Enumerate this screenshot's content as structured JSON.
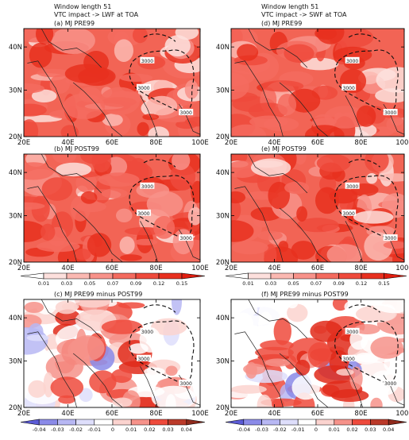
{
  "header": {
    "left": [
      "Window length 51",
      "VTC impact -> LWF at TOA"
    ],
    "right": [
      "Window length 51",
      "VTC impact -> SWF at TOA"
    ]
  },
  "panels": [
    {
      "id": "a",
      "title": "(a) MJ PRE99",
      "kind": "full"
    },
    {
      "id": "b",
      "title": "(b) MJ POST99",
      "kind": "full"
    },
    {
      "id": "c",
      "title": "(c) MJ PRE99 minus POST99",
      "kind": "diff"
    },
    {
      "id": "d",
      "title": "(d) MJ PRE99",
      "kind": "full"
    },
    {
      "id": "e",
      "title": "(e) MJ POST99",
      "kind": "full"
    },
    {
      "id": "f",
      "title": "(f) MJ PRE99 minus POST99",
      "kind": "diff"
    }
  ],
  "axes": {
    "lon_ticks": [
      "20E",
      "40E",
      "60E",
      "80E",
      "100E"
    ],
    "lat_ticks": [
      "40N",
      "30N",
      "20N"
    ]
  },
  "contour_labels": [
    "3000",
    "3000",
    "3000"
  ],
  "colorbar_top": {
    "labels": [
      "0.01",
      "0.03",
      "0.05",
      "0.07",
      "0.09",
      "0.12",
      "0.15"
    ],
    "colors": [
      "#ffffff",
      "#fde0dd",
      "#fbb9b2",
      "#f8928a",
      "#f46b5f",
      "#ef4a3c",
      "#e8301f",
      "#e01e10"
    ]
  },
  "colorbar_bottom": {
    "labels": [
      "-0.04",
      "-0.03",
      "-0.02",
      "-0.01",
      "0",
      "0.01",
      "0.02",
      "0.03",
      "0.04"
    ],
    "colors": [
      "#5b5bd6",
      "#8a8ae8",
      "#b7b7f3",
      "#dedefb",
      "#ffffff",
      "#fbd3cf",
      "#f6928a",
      "#ee4a3c",
      "#bb3a2a",
      "#8f2a1c"
    ]
  }
}
